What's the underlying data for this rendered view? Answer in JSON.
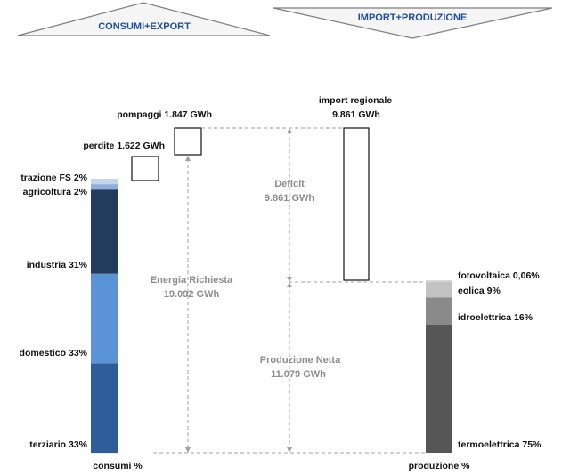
{
  "headers": {
    "left": "CONSUMI+EXPORT",
    "right": "IMPORT+PRODUZIONE"
  },
  "consumi": {
    "axis_label": "consumi %",
    "segments": [
      {
        "key": "terziario",
        "label": "terziario 33%",
        "percent": 33,
        "color": "#2f5d97"
      },
      {
        "key": "domestico",
        "label": "domestico 33%",
        "percent": 33,
        "color": "#5b94d6"
      },
      {
        "key": "industria",
        "label": "industria 31%",
        "percent": 31,
        "color": "#233c5e"
      },
      {
        "key": "agricoltura",
        "label": "agricoltura 2%",
        "percent": 2,
        "color": "#8db0dc"
      },
      {
        "key": "trazione",
        "label": "trazione FS 2%",
        "percent": 2,
        "color": "#c4d4ea"
      }
    ]
  },
  "produzione": {
    "axis_label": "produzione %",
    "segments": [
      {
        "key": "termoelettrica",
        "label": "termoelettrica 75%",
        "percent": 75,
        "color": "#565656"
      },
      {
        "key": "idroelettrica",
        "label": "idroelettrica 16%",
        "percent": 16,
        "color": "#8a8a8a"
      },
      {
        "key": "eolica",
        "label": "eolica 9%",
        "percent": 9,
        "color": "#c2c2c2"
      },
      {
        "key": "fotovoltaica",
        "label": "fotovoltaica 0,06%",
        "percent": 0.06,
        "color": "#d8d8d8"
      }
    ]
  },
  "boxes": {
    "perdite": {
      "label": "perdite 1.622 GWh",
      "gwh": 1622
    },
    "pompaggi": {
      "label": "pompaggi 1.847 GWh",
      "gwh": 1847
    },
    "import_label1": "import regionale",
    "import_label2": "9.861 GWh"
  },
  "annotations": {
    "energia_line1": "Energia Richiesta",
    "energia_line2": "19.092 GWh",
    "deficit_line1": "Deficit",
    "deficit_line2": "9.861 GWh",
    "produzione_line1": "Produzione Netta",
    "produzione_line2": "11.079 GWh"
  },
  "colors": {
    "header_text": "#1f4e9c",
    "annotation_text": "#8c8c8c",
    "dashed_line": "#a0a0a0",
    "label_text": "#111111"
  }
}
